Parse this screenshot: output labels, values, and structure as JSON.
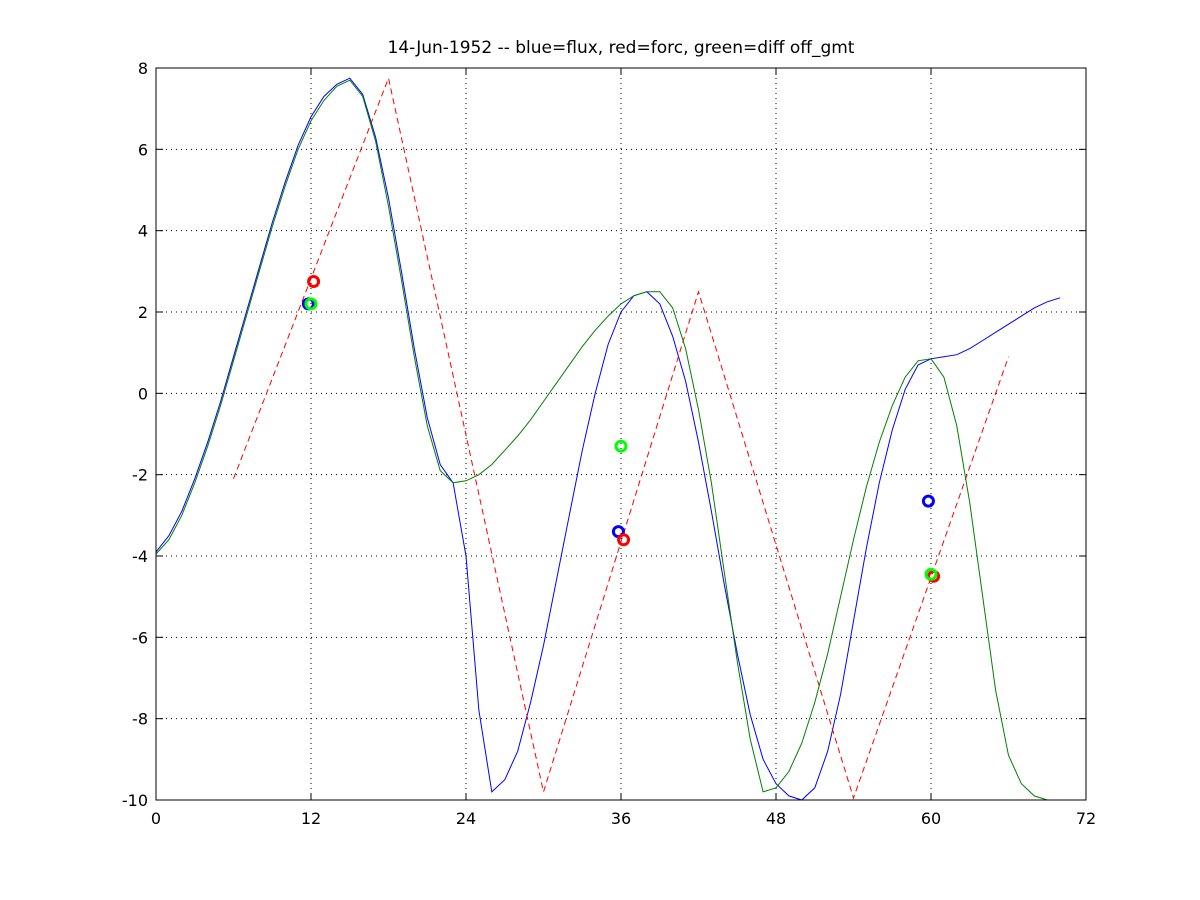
{
  "chart_data": {
    "type": "line",
    "title": "14-Jun-1952 -- blue=flux, red=forc, green=diff off_gmt",
    "xlabel": "",
    "ylabel": "",
    "xlim": [
      0,
      72
    ],
    "ylim": [
      -10,
      8
    ],
    "xticks": [
      0,
      12,
      24,
      36,
      48,
      60,
      72
    ],
    "yticks": [
      -10,
      -8,
      -6,
      -4,
      -2,
      0,
      2,
      4,
      6,
      8
    ],
    "grid": true,
    "series": [
      {
        "color": "#0000ff",
        "style": "solid",
        "points": [
          [
            0,
            -3.9
          ],
          [
            1,
            -3.5
          ],
          [
            2,
            -2.9
          ],
          [
            3,
            -2.1
          ],
          [
            4,
            -1.2
          ],
          [
            5,
            -0.2
          ],
          [
            6,
            0.9
          ],
          [
            7,
            2.0
          ],
          [
            8,
            3.1
          ],
          [
            9,
            4.2
          ],
          [
            10,
            5.2
          ],
          [
            11,
            6.1
          ],
          [
            12,
            6.8
          ],
          [
            13,
            7.3
          ],
          [
            14,
            7.6
          ],
          [
            15,
            7.75
          ],
          [
            16,
            7.35
          ],
          [
            17,
            6.3
          ],
          [
            18,
            4.8
          ],
          [
            19,
            3.0
          ],
          [
            20,
            1.1
          ],
          [
            21,
            -0.6
          ],
          [
            22,
            -1.75
          ],
          [
            23,
            -2.2
          ],
          [
            24,
            -4.0
          ],
          [
            25,
            -7.8
          ],
          [
            26,
            -9.8
          ],
          [
            27,
            -9.5
          ],
          [
            28,
            -8.8
          ],
          [
            29,
            -7.6
          ],
          [
            30,
            -6.2
          ],
          [
            31,
            -4.6
          ],
          [
            32,
            -3.0
          ],
          [
            33,
            -1.4
          ],
          [
            34,
            0.0
          ],
          [
            35,
            1.2
          ],
          [
            36,
            2.0
          ],
          [
            37,
            2.4
          ],
          [
            38,
            2.5
          ],
          [
            39,
            2.2
          ],
          [
            40,
            1.4
          ],
          [
            41,
            0.3
          ],
          [
            42,
            -1.2
          ],
          [
            43,
            -2.9
          ],
          [
            44,
            -4.7
          ],
          [
            45,
            -6.4
          ],
          [
            46,
            -7.9
          ],
          [
            47,
            -9.0
          ],
          [
            48,
            -9.6
          ],
          [
            49,
            -9.9
          ],
          [
            50,
            -10.0
          ],
          [
            51,
            -9.7
          ],
          [
            52,
            -8.8
          ],
          [
            53,
            -7.4
          ],
          [
            54,
            -5.6
          ],
          [
            55,
            -3.8
          ],
          [
            56,
            -2.2
          ],
          [
            57,
            -0.9
          ],
          [
            58,
            0.1
          ],
          [
            59,
            0.7
          ],
          [
            60,
            0.85
          ],
          [
            61,
            0.9
          ],
          [
            62,
            0.95
          ],
          [
            63,
            1.1
          ],
          [
            64,
            1.3
          ],
          [
            65,
            1.5
          ],
          [
            66,
            1.7
          ],
          [
            67,
            1.9
          ],
          [
            68,
            2.1
          ],
          [
            69,
            2.25
          ],
          [
            70,
            2.35
          ]
        ]
      },
      {
        "color": "#ff0000",
        "style": "dashed",
        "points": [
          [
            6,
            -2.1
          ],
          [
            18,
            7.75
          ],
          [
            30,
            -9.8
          ],
          [
            42,
            2.5
          ],
          [
            54,
            -9.95
          ],
          [
            66,
            0.9
          ]
        ]
      },
      {
        "color": "#008000",
        "style": "solid",
        "points": [
          [
            0,
            -3.95
          ],
          [
            1,
            -3.6
          ],
          [
            2,
            -3.0
          ],
          [
            3,
            -2.2
          ],
          [
            4,
            -1.3
          ],
          [
            5,
            -0.3
          ],
          [
            6,
            0.8
          ],
          [
            7,
            1.9
          ],
          [
            8,
            3.0
          ],
          [
            9,
            4.1
          ],
          [
            10,
            5.1
          ],
          [
            11,
            6.0
          ],
          [
            12,
            6.7
          ],
          [
            13,
            7.2
          ],
          [
            14,
            7.55
          ],
          [
            15,
            7.7
          ],
          [
            16,
            7.3
          ],
          [
            17,
            6.2
          ],
          [
            18,
            4.6
          ],
          [
            19,
            2.8
          ],
          [
            20,
            0.9
          ],
          [
            21,
            -0.8
          ],
          [
            22,
            -1.9
          ],
          [
            23,
            -2.2
          ],
          [
            24,
            -2.15
          ],
          [
            25,
            -2.0
          ],
          [
            26,
            -1.75
          ],
          [
            27,
            -1.4
          ],
          [
            28,
            -1.05
          ],
          [
            29,
            -0.65
          ],
          [
            30,
            -0.2
          ],
          [
            31,
            0.25
          ],
          [
            32,
            0.7
          ],
          [
            33,
            1.15
          ],
          [
            34,
            1.55
          ],
          [
            35,
            1.9
          ],
          [
            36,
            2.2
          ],
          [
            37,
            2.4
          ],
          [
            38,
            2.5
          ],
          [
            39,
            2.5
          ],
          [
            40,
            2.1
          ],
          [
            41,
            1.1
          ],
          [
            42,
            -0.4
          ],
          [
            43,
            -2.2
          ],
          [
            44,
            -4.4
          ],
          [
            45,
            -6.6
          ],
          [
            46,
            -8.5
          ],
          [
            47,
            -9.8
          ],
          [
            48,
            -9.7
          ],
          [
            49,
            -9.3
          ],
          [
            50,
            -8.6
          ],
          [
            51,
            -7.6
          ],
          [
            52,
            -6.4
          ],
          [
            53,
            -5.0
          ],
          [
            54,
            -3.6
          ],
          [
            55,
            -2.3
          ],
          [
            56,
            -1.2
          ],
          [
            57,
            -0.3
          ],
          [
            58,
            0.4
          ],
          [
            59,
            0.8
          ],
          [
            60,
            0.85
          ],
          [
            61,
            0.4
          ],
          [
            62,
            -0.8
          ],
          [
            63,
            -2.7
          ],
          [
            64,
            -5.0
          ],
          [
            65,
            -7.3
          ],
          [
            66,
            -8.9
          ],
          [
            67,
            -9.6
          ],
          [
            68,
            -9.9
          ],
          [
            69,
            -10.0
          ]
        ]
      }
    ],
    "markers": [
      {
        "x": 11.8,
        "y": 2.2,
        "color": "#0000ff"
      },
      {
        "x": 12.2,
        "y": 2.75,
        "color": "#ff0000"
      },
      {
        "x": 12.0,
        "y": 2.2,
        "color": "#00ff00"
      },
      {
        "x": 35.8,
        "y": -3.4,
        "color": "#0000ff"
      },
      {
        "x": 36.2,
        "y": -3.6,
        "color": "#ff0000"
      },
      {
        "x": 36.0,
        "y": -1.3,
        "color": "#00ff00"
      },
      {
        "x": 59.8,
        "y": -2.65,
        "color": "#0000ff"
      },
      {
        "x": 60.2,
        "y": -4.5,
        "color": "#ff0000"
      },
      {
        "x": 60.0,
        "y": -4.45,
        "color": "#00ff00"
      }
    ]
  }
}
